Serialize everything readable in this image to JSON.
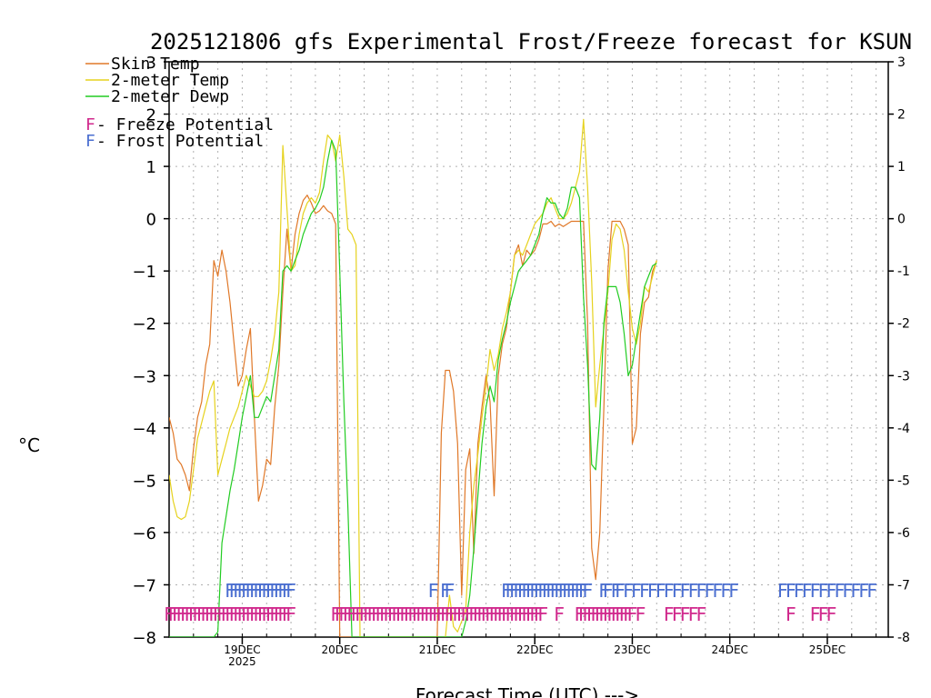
{
  "chart_data": {
    "type": "line",
    "title": "2025121806 gfs Experimental Frost/Freeze forecast for KSUN",
    "ylabel": "°C",
    "xlabel": "Forecast Time (UTC) --->",
    "ylim": [
      -8,
      3
    ],
    "yticks": [
      -8,
      -7,
      -6,
      -5,
      -4,
      -3,
      -2,
      -1,
      0,
      1,
      2,
      3
    ],
    "ytick_labels_left": [
      "−8",
      "−7",
      "−6",
      "−5",
      "−4",
      "−3",
      "−2",
      "−1",
      "0",
      "1",
      "2",
      "3"
    ],
    "ytick_labels_right": [
      "-8",
      "-7",
      "-6",
      "-5",
      "-4",
      "-3",
      "-2",
      "-1",
      "0",
      "1",
      "2",
      "3"
    ],
    "xlim": [
      6,
      183
    ],
    "day_ticks": [
      {
        "hour": 24,
        "label": "19DEC",
        "sublabel": "2025"
      },
      {
        "hour": 48,
        "label": "20DEC",
        "sublabel": ""
      },
      {
        "hour": 72,
        "label": "21DEC",
        "sublabel": ""
      },
      {
        "hour": 96,
        "label": "22DEC",
        "sublabel": ""
      },
      {
        "hour": 120,
        "label": "23DEC",
        "sublabel": ""
      },
      {
        "hour": 144,
        "label": "24DEC",
        "sublabel": ""
      },
      {
        "hour": 168,
        "label": "25DEC",
        "sublabel": ""
      }
    ],
    "x_hours": [
      6,
      7,
      8,
      9,
      10,
      11,
      12,
      13,
      14,
      15,
      16,
      17,
      18,
      19,
      20,
      21,
      22,
      23,
      24,
      25,
      26,
      27,
      28,
      29,
      30,
      31,
      32,
      33,
      34,
      35,
      36,
      37,
      38,
      39,
      40,
      41,
      42,
      43,
      44,
      45,
      46,
      47,
      48,
      49,
      50,
      51,
      52,
      53,
      54,
      55,
      56,
      57,
      58,
      59,
      60,
      61,
      62,
      63,
      64,
      65,
      66,
      67,
      68,
      69,
      70,
      71,
      72,
      73,
      74,
      75,
      76,
      77,
      78,
      79,
      80,
      81,
      82,
      83,
      84,
      85,
      86,
      87,
      88,
      89,
      90,
      91,
      92,
      93,
      94,
      95,
      96,
      97,
      98,
      99,
      100,
      101,
      102,
      103,
      104,
      105,
      106,
      107,
      108,
      109,
      110,
      111,
      112,
      113,
      114,
      115,
      116,
      117,
      118,
      119,
      120,
      121,
      122,
      123,
      124,
      125,
      126
    ],
    "series": [
      {
        "name": "Skin Temp",
        "color": "#e07828",
        "values": [
          -3.8,
          -4.1,
          -4.6,
          -4.7,
          -4.9,
          -5.2,
          -4.4,
          -3.8,
          -3.5,
          -2.8,
          -2.4,
          -0.8,
          -1.1,
          -0.6,
          -1.0,
          -1.6,
          -2.4,
          -3.2,
          -3.0,
          -2.5,
          -2.1,
          -3.8,
          -5.4,
          -5.1,
          -4.6,
          -4.7,
          -3.6,
          -2.8,
          -1.4,
          -0.2,
          -1.0,
          -0.3,
          0.1,
          0.35,
          0.45,
          0.3,
          0.1,
          0.15,
          0.25,
          0.15,
          0.1,
          -0.1,
          -8,
          -8,
          -8,
          -8,
          -8,
          -8,
          -8,
          -8,
          -8,
          -8,
          -8,
          -8,
          -8,
          -8,
          -8,
          -8,
          -8,
          -8,
          -8,
          -8,
          -8,
          -8,
          -8,
          -8,
          -8,
          -4.1,
          -2.9,
          -2.9,
          -3.3,
          -4.3,
          -7.2,
          -4.8,
          -4.4,
          -6.4,
          -4.3,
          -3.6,
          -3.0,
          -3.5,
          -5.3,
          -3.0,
          -2.4,
          -2.1,
          -1.4,
          -0.7,
          -0.5,
          -0.9,
          -0.6,
          -0.7,
          -0.6,
          -0.4,
          -0.1,
          -0.1,
          -0.05,
          -0.15,
          -0.1,
          -0.15,
          -0.1,
          -0.05,
          -0.05,
          -0.05,
          -0.05,
          -2.0,
          -6.3,
          -6.9,
          -6.0,
          -3.6,
          -1.0,
          -0.05,
          -0.05,
          -0.05,
          -0.2,
          -0.5,
          -4.3,
          -4.0,
          -2.2,
          -1.6,
          -1.5,
          -1.0,
          -0.8
        ],
        "style": "ragged"
      },
      {
        "name": "2-meter Temp",
        "color": "#e6d21e",
        "values": [
          -4.9,
          -5.4,
          -5.7,
          -5.75,
          -5.7,
          -5.4,
          -4.8,
          -4.2,
          -3.9,
          -3.6,
          -3.3,
          -3.1,
          -4.9,
          -4.6,
          -4.3,
          -4.0,
          -3.8,
          -3.6,
          -3.3,
          -3.0,
          -3.2,
          -3.4,
          -3.4,
          -3.3,
          -3.1,
          -2.7,
          -2.2,
          -1.4,
          1.4,
          0.2,
          -1.0,
          -0.9,
          -0.3,
          0.1,
          0.3,
          0.4,
          0.3,
          0.5,
          1.1,
          1.6,
          1.5,
          1.1,
          1.6,
          0.8,
          -0.2,
          -0.3,
          -0.5,
          -8,
          -8,
          -8,
          -8,
          -8,
          -8,
          -8,
          -8,
          -8,
          -8,
          -8,
          -8,
          -8,
          -8,
          -8,
          -8,
          -8,
          -8,
          -8,
          -8,
          -8,
          -8,
          -7.2,
          -7.8,
          -7.9,
          -7.7,
          -7.5,
          -6.0,
          -5.1,
          -4.5,
          -3.8,
          -3.2,
          -2.5,
          -2.9,
          -2.6,
          -2.1,
          -1.8,
          -1.4,
          -0.7,
          -0.6,
          -0.7,
          -0.5,
          -0.3,
          -0.1,
          0.0,
          0.1,
          0.3,
          0.4,
          0.2,
          0.0,
          0.0,
          0.1,
          0.3,
          0.6,
          0.9,
          1.9,
          0.6,
          -1.2,
          -3.6,
          -2.8,
          -2.1,
          -1.4,
          -0.4,
          -0.1,
          -0.2,
          -0.6,
          -1.4,
          -2.1,
          -2.4,
          -2.0,
          -1.3,
          -1.4,
          -1.1,
          -0.8
        ],
        "style": "smooth"
      },
      {
        "name": "2-meter Dewp",
        "color": "#22cc22",
        "values": [
          -8,
          -8,
          -8,
          -8,
          -8,
          -8,
          -8,
          -8,
          -8,
          -8,
          -8,
          -8,
          -7.9,
          -6.2,
          -5.7,
          -5.2,
          -4.8,
          -4.3,
          -3.8,
          -3.4,
          -3.0,
          -3.8,
          -3.8,
          -3.6,
          -3.4,
          -3.5,
          -3.0,
          -2.5,
          -1.0,
          -0.9,
          -1.0,
          -0.8,
          -0.6,
          -0.3,
          -0.1,
          0.1,
          0.2,
          0.35,
          0.6,
          1.1,
          1.5,
          1.3,
          -1.0,
          -3.5,
          -5.5,
          -8,
          -8,
          -8,
          -8,
          -8,
          -8,
          -8,
          -8,
          -8,
          -8,
          -8,
          -8,
          -8,
          -8,
          -8,
          -8,
          -8,
          -8,
          -8,
          -8,
          -8,
          -8,
          -8,
          -8,
          -8,
          -8,
          -8,
          -8,
          -7.7,
          -7.2,
          -6.3,
          -5.3,
          -4.3,
          -3.6,
          -3.2,
          -3.5,
          -2.7,
          -2.3,
          -2.0,
          -1.6,
          -1.3,
          -1.0,
          -0.9,
          -0.8,
          -0.7,
          -0.5,
          -0.3,
          0.1,
          0.4,
          0.3,
          0.3,
          0.1,
          0.0,
          0.2,
          0.6,
          0.6,
          0.4,
          -1.5,
          -2.8,
          -4.7,
          -4.8,
          -3.8,
          -2.0,
          -1.3,
          -1.3,
          -1.3,
          -1.6,
          -2.2,
          -3.0,
          -2.8,
          -2.3,
          -1.8,
          -1.3,
          -1.1,
          -0.9,
          -0.85
        ],
        "style": "smooth"
      }
    ],
    "legend": [
      {
        "label": "Skin Temp",
        "color": "#e07828"
      },
      {
        "label": "2-meter Temp",
        "color": "#e6d21e"
      },
      {
        "label": "2-meter Dewp",
        "color": "#22cc22"
      }
    ],
    "potential_legend": [
      {
        "symbol": "F",
        "label": " - Freeze Potential",
        "color": "#d0288c"
      },
      {
        "symbol": "F",
        "label": " - Frost Potential",
        "color": "#4a6ed0"
      }
    ],
    "frost_markers": {
      "color": "#4a6ed0",
      "level": -7.1,
      "hours": [
        21,
        22,
        23,
        24,
        25,
        26,
        27,
        28,
        29,
        30,
        31,
        32,
        33,
        34,
        35,
        36,
        71,
        74,
        75,
        89,
        90,
        91,
        92,
        93,
        94,
        95,
        96,
        97,
        98,
        99,
        100,
        101,
        102,
        103,
        104,
        105,
        106,
        107,
        108,
        109,
        113,
        114,
        116,
        117,
        119,
        121,
        123,
        125,
        127,
        129,
        131,
        133,
        135,
        137,
        139,
        141,
        143,
        145,
        157,
        159,
        161,
        163,
        165,
        167,
        169,
        171,
        173,
        175,
        177,
        179
      ]
    },
    "freeze_markers": {
      "color": "#d0288c",
      "level": -7.55,
      "hours": [
        6,
        7,
        8,
        9,
        10,
        11,
        12,
        13,
        14,
        15,
        16,
        17,
        18,
        19,
        20,
        21,
        22,
        23,
        24,
        25,
        26,
        27,
        28,
        29,
        30,
        31,
        32,
        33,
        34,
        35,
        36,
        47,
        48,
        49,
        50,
        51,
        52,
        53,
        54,
        55,
        56,
        57,
        58,
        59,
        60,
        61,
        62,
        63,
        64,
        65,
        66,
        67,
        68,
        69,
        70,
        71,
        72,
        73,
        74,
        75,
        76,
        77,
        78,
        79,
        80,
        81,
        82,
        83,
        84,
        85,
        86,
        87,
        88,
        89,
        90,
        91,
        92,
        93,
        94,
        95,
        96,
        97,
        98,
        102,
        107,
        108,
        109,
        110,
        111,
        112,
        113,
        114,
        115,
        116,
        117,
        118,
        119,
        120,
        122,
        129,
        131,
        133,
        135,
        137,
        159,
        165,
        167,
        169
      ]
    }
  }
}
